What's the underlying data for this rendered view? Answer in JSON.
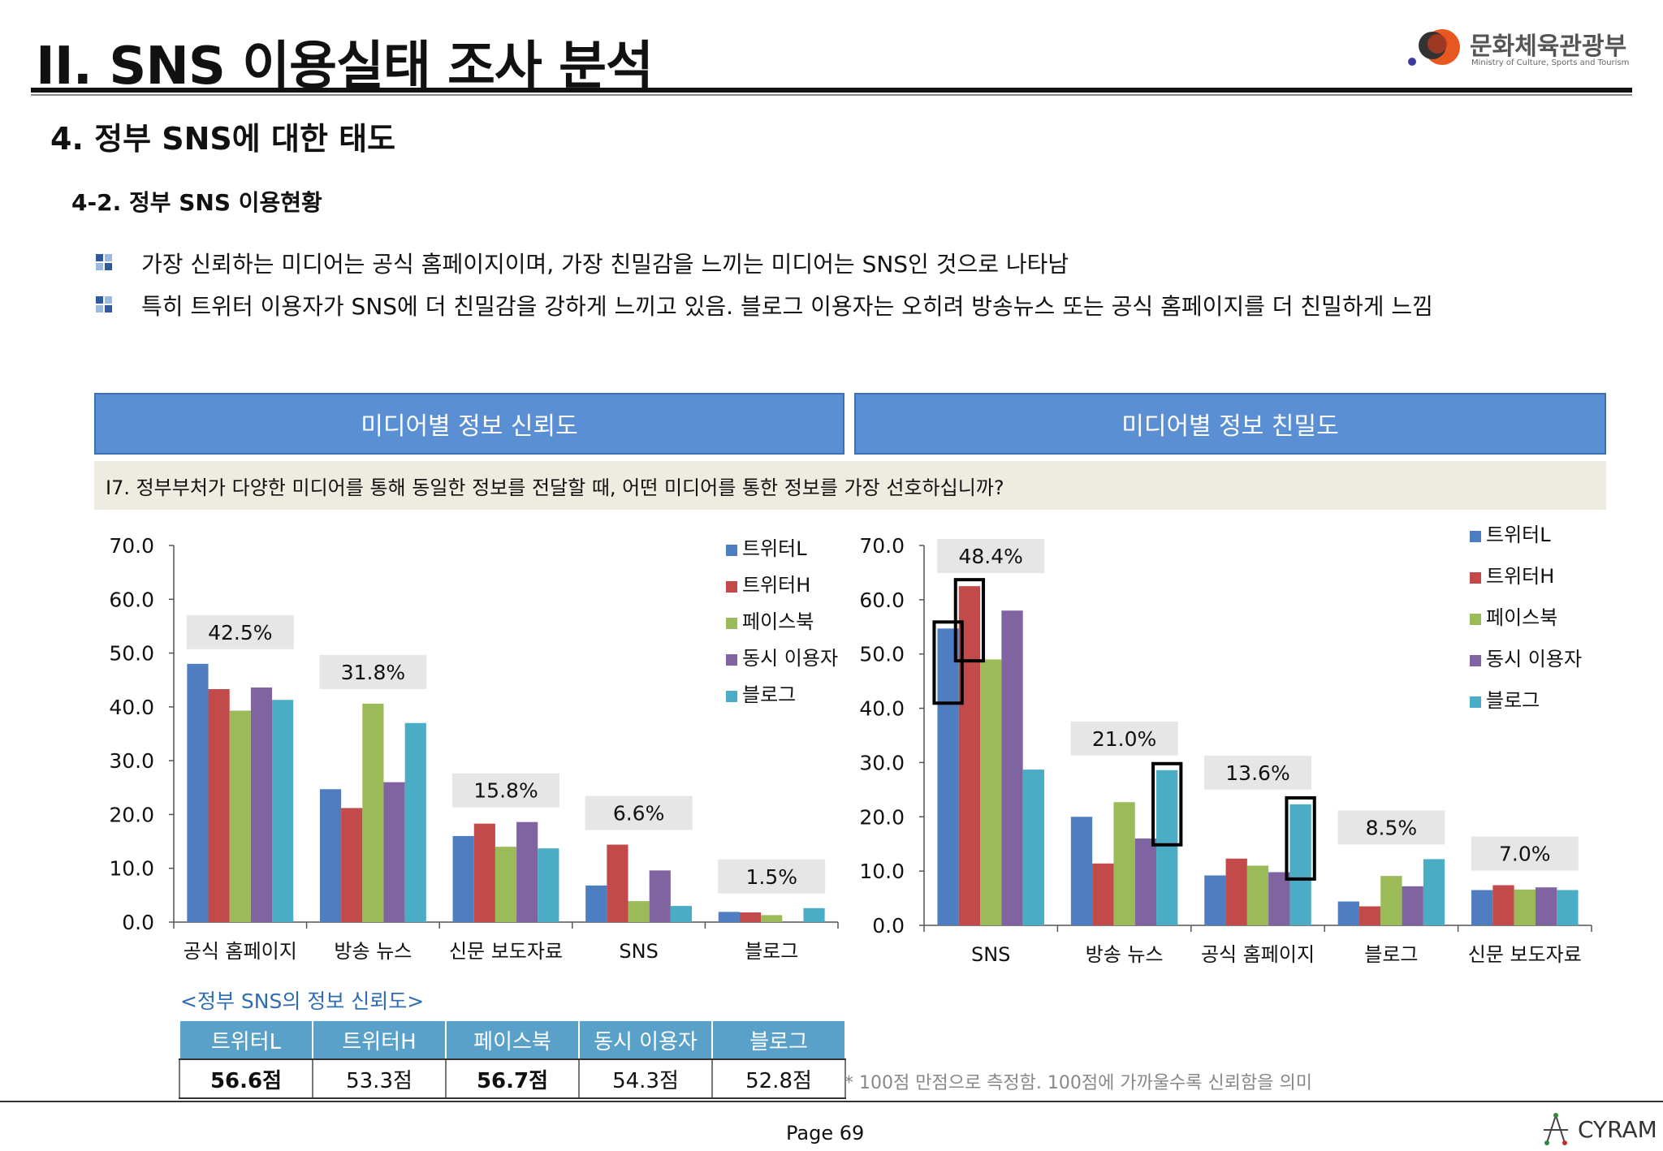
{
  "header": {
    "title": "II. SNS 이용실태 조사 분석",
    "logo_text": "문화체육관광부",
    "logo_subtext": "Ministry of Culture, Sports and Tourism"
  },
  "section": {
    "title": "4. 정부 SNS에 대한 태도",
    "subtitle": "4-2. 정부 SNS 이용현황"
  },
  "bullets": [
    "가장 신뢰하는 미디어는 공식 홈페이지이며, 가장 친밀감을 느끼는 미디어는 SNS인 것으로 나타남",
    "특히 트위터 이용자가 SNS에 더 친밀감을 강하게 느끼고 있음. 블로그 이용자는 오히려 방송뉴스 또는 공식 홈페이지를 더 친밀하게 느낌"
  ],
  "panels": {
    "left_header": "미디어별 정보 신뢰도",
    "right_header": "미디어별 정보 친밀도",
    "question": "I7. 정부부처가 다양한 미디어를 통해 동일한 정보를 전달할 때, 어떤 미디어를 통한 정보를 가장 선호하십니까?"
  },
  "colors": {
    "트위터L": "#4f7dc1",
    "트위터H": "#c24a4a",
    "페이스북": "#9bbb59",
    "동시 이용자": "#8064a2",
    "블로그": "#4bacc6",
    "header_blue": "#5b8fd4",
    "table_header": "#5aa1c9"
  },
  "chart_data": [
    {
      "type": "bar",
      "categories": [
        "공식 홈페이지",
        "방송 뉴스",
        "신문 보도자료",
        "SNS",
        "블로그"
      ],
      "series": [
        {
          "name": "트위터L",
          "values": [
            48.0,
            24.7,
            16.0,
            6.8,
            1.9
          ]
        },
        {
          "name": "트위터H",
          "values": [
            43.3,
            21.2,
            18.3,
            14.4,
            1.8
          ]
        },
        {
          "name": "페이스북",
          "values": [
            39.3,
            40.6,
            14.0,
            3.9,
            1.3
          ]
        },
        {
          "name": "동시 이용자",
          "values": [
            43.6,
            26.0,
            18.6,
            9.6,
            0.0
          ]
        },
        {
          "name": "블로그",
          "values": [
            41.3,
            37.0,
            13.7,
            3.0,
            2.6
          ]
        }
      ],
      "annotations": [
        "42.5%",
        "31.8%",
        "15.8%",
        "6.6%",
        "1.5%"
      ],
      "yticks": [
        "0.0",
        "10.0",
        "20.0",
        "30.0",
        "40.0",
        "50.0",
        "60.0",
        "70.0"
      ],
      "ylim": [
        0,
        70
      ],
      "legend": "top-right",
      "grid": false
    },
    {
      "type": "bar",
      "categories": [
        "SNS",
        "방송 뉴스",
        "공식 홈페이지",
        "블로그",
        "신문 보도자료"
      ],
      "series": [
        {
          "name": "트위터L",
          "values": [
            54.7,
            20.0,
            9.2,
            4.4,
            6.5
          ]
        },
        {
          "name": "트위터H",
          "values": [
            62.5,
            11.4,
            12.3,
            3.5,
            7.4
          ]
        },
        {
          "name": "페이스북",
          "values": [
            49.0,
            22.7,
            11.0,
            9.1,
            6.6
          ]
        },
        {
          "name": "동시 이용자",
          "values": [
            58.0,
            16.0,
            9.8,
            7.2,
            7.0
          ]
        },
        {
          "name": "블로그",
          "values": [
            28.7,
            28.6,
            22.3,
            12.2,
            6.5
          ]
        }
      ],
      "annotations": [
        "48.4%",
        "21.0%",
        "13.6%",
        "8.5%",
        "7.0%"
      ],
      "yticks": [
        "0.0",
        "10.0",
        "20.0",
        "30.0",
        "40.0",
        "50.0",
        "60.0",
        "70.0"
      ],
      "ylim": [
        0,
        70
      ],
      "legend": "top-right",
      "grid": false,
      "highlighted_bars": [
        {
          "category": "SNS",
          "series": "트위터L"
        },
        {
          "category": "SNS",
          "series": "트위터H"
        },
        {
          "category": "방송 뉴스",
          "series": "블로그"
        },
        {
          "category": "공식 홈페이지",
          "series": "블로그"
        }
      ]
    }
  ],
  "score_table": {
    "caption": "<정부 SNS의 정보 신뢰도>",
    "headers": [
      "트위터L",
      "트위터H",
      "페이스북",
      "동시 이용자",
      "블로그"
    ],
    "values": [
      "56.6점",
      "53.3점",
      "56.7점",
      "54.3점",
      "52.8점"
    ],
    "bold": [
      true,
      false,
      true,
      false,
      false
    ]
  },
  "footnote": "* 100점 만점으로 측정함. 100점에 가까울수록 신뢰함을 의미",
  "footer": {
    "page_label": "Page  69",
    "brand": "CYRAM"
  }
}
